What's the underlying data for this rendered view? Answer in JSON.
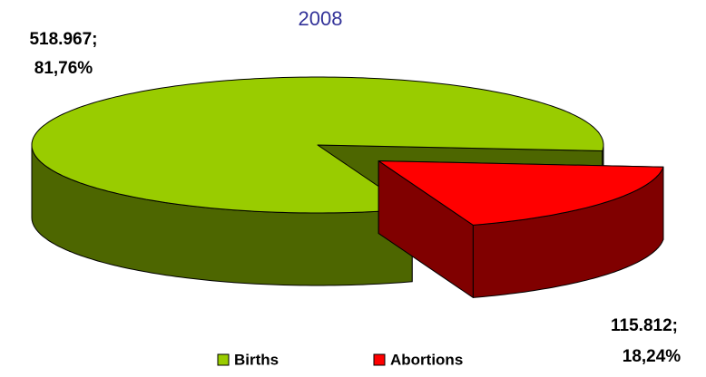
{
  "chart_data": {
    "type": "pie3d",
    "title": "2008",
    "categories": [
      "Births",
      "Abortions"
    ],
    "values": [
      518967,
      115812
    ],
    "value_labels": [
      "518.967;",
      "115.812;"
    ],
    "percentages": [
      81.76,
      18.24
    ],
    "percent_labels": [
      "81,76%",
      "18,24%"
    ],
    "colors": [
      "#99cc00",
      "#ff0000"
    ],
    "side_colors": [
      "#4d6600",
      "#800000"
    ],
    "exploded": [
      false,
      true
    ],
    "legend": "bottom"
  }
}
